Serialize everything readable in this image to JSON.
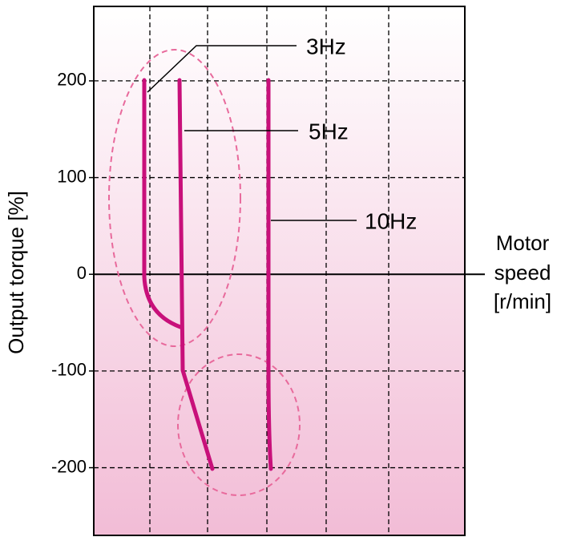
{
  "chart_data": {
    "type": "line",
    "y_label": "Output torque [%]",
    "x_label": [
      "Motor",
      "speed",
      "[r/min]"
    ],
    "annotations": [
      "3Hz",
      "5Hz",
      "10Hz"
    ],
    "ylim": [
      -270,
      277
    ],
    "yticks": [
      200,
      100,
      0,
      -100,
      -200
    ],
    "grid": true
  }
}
